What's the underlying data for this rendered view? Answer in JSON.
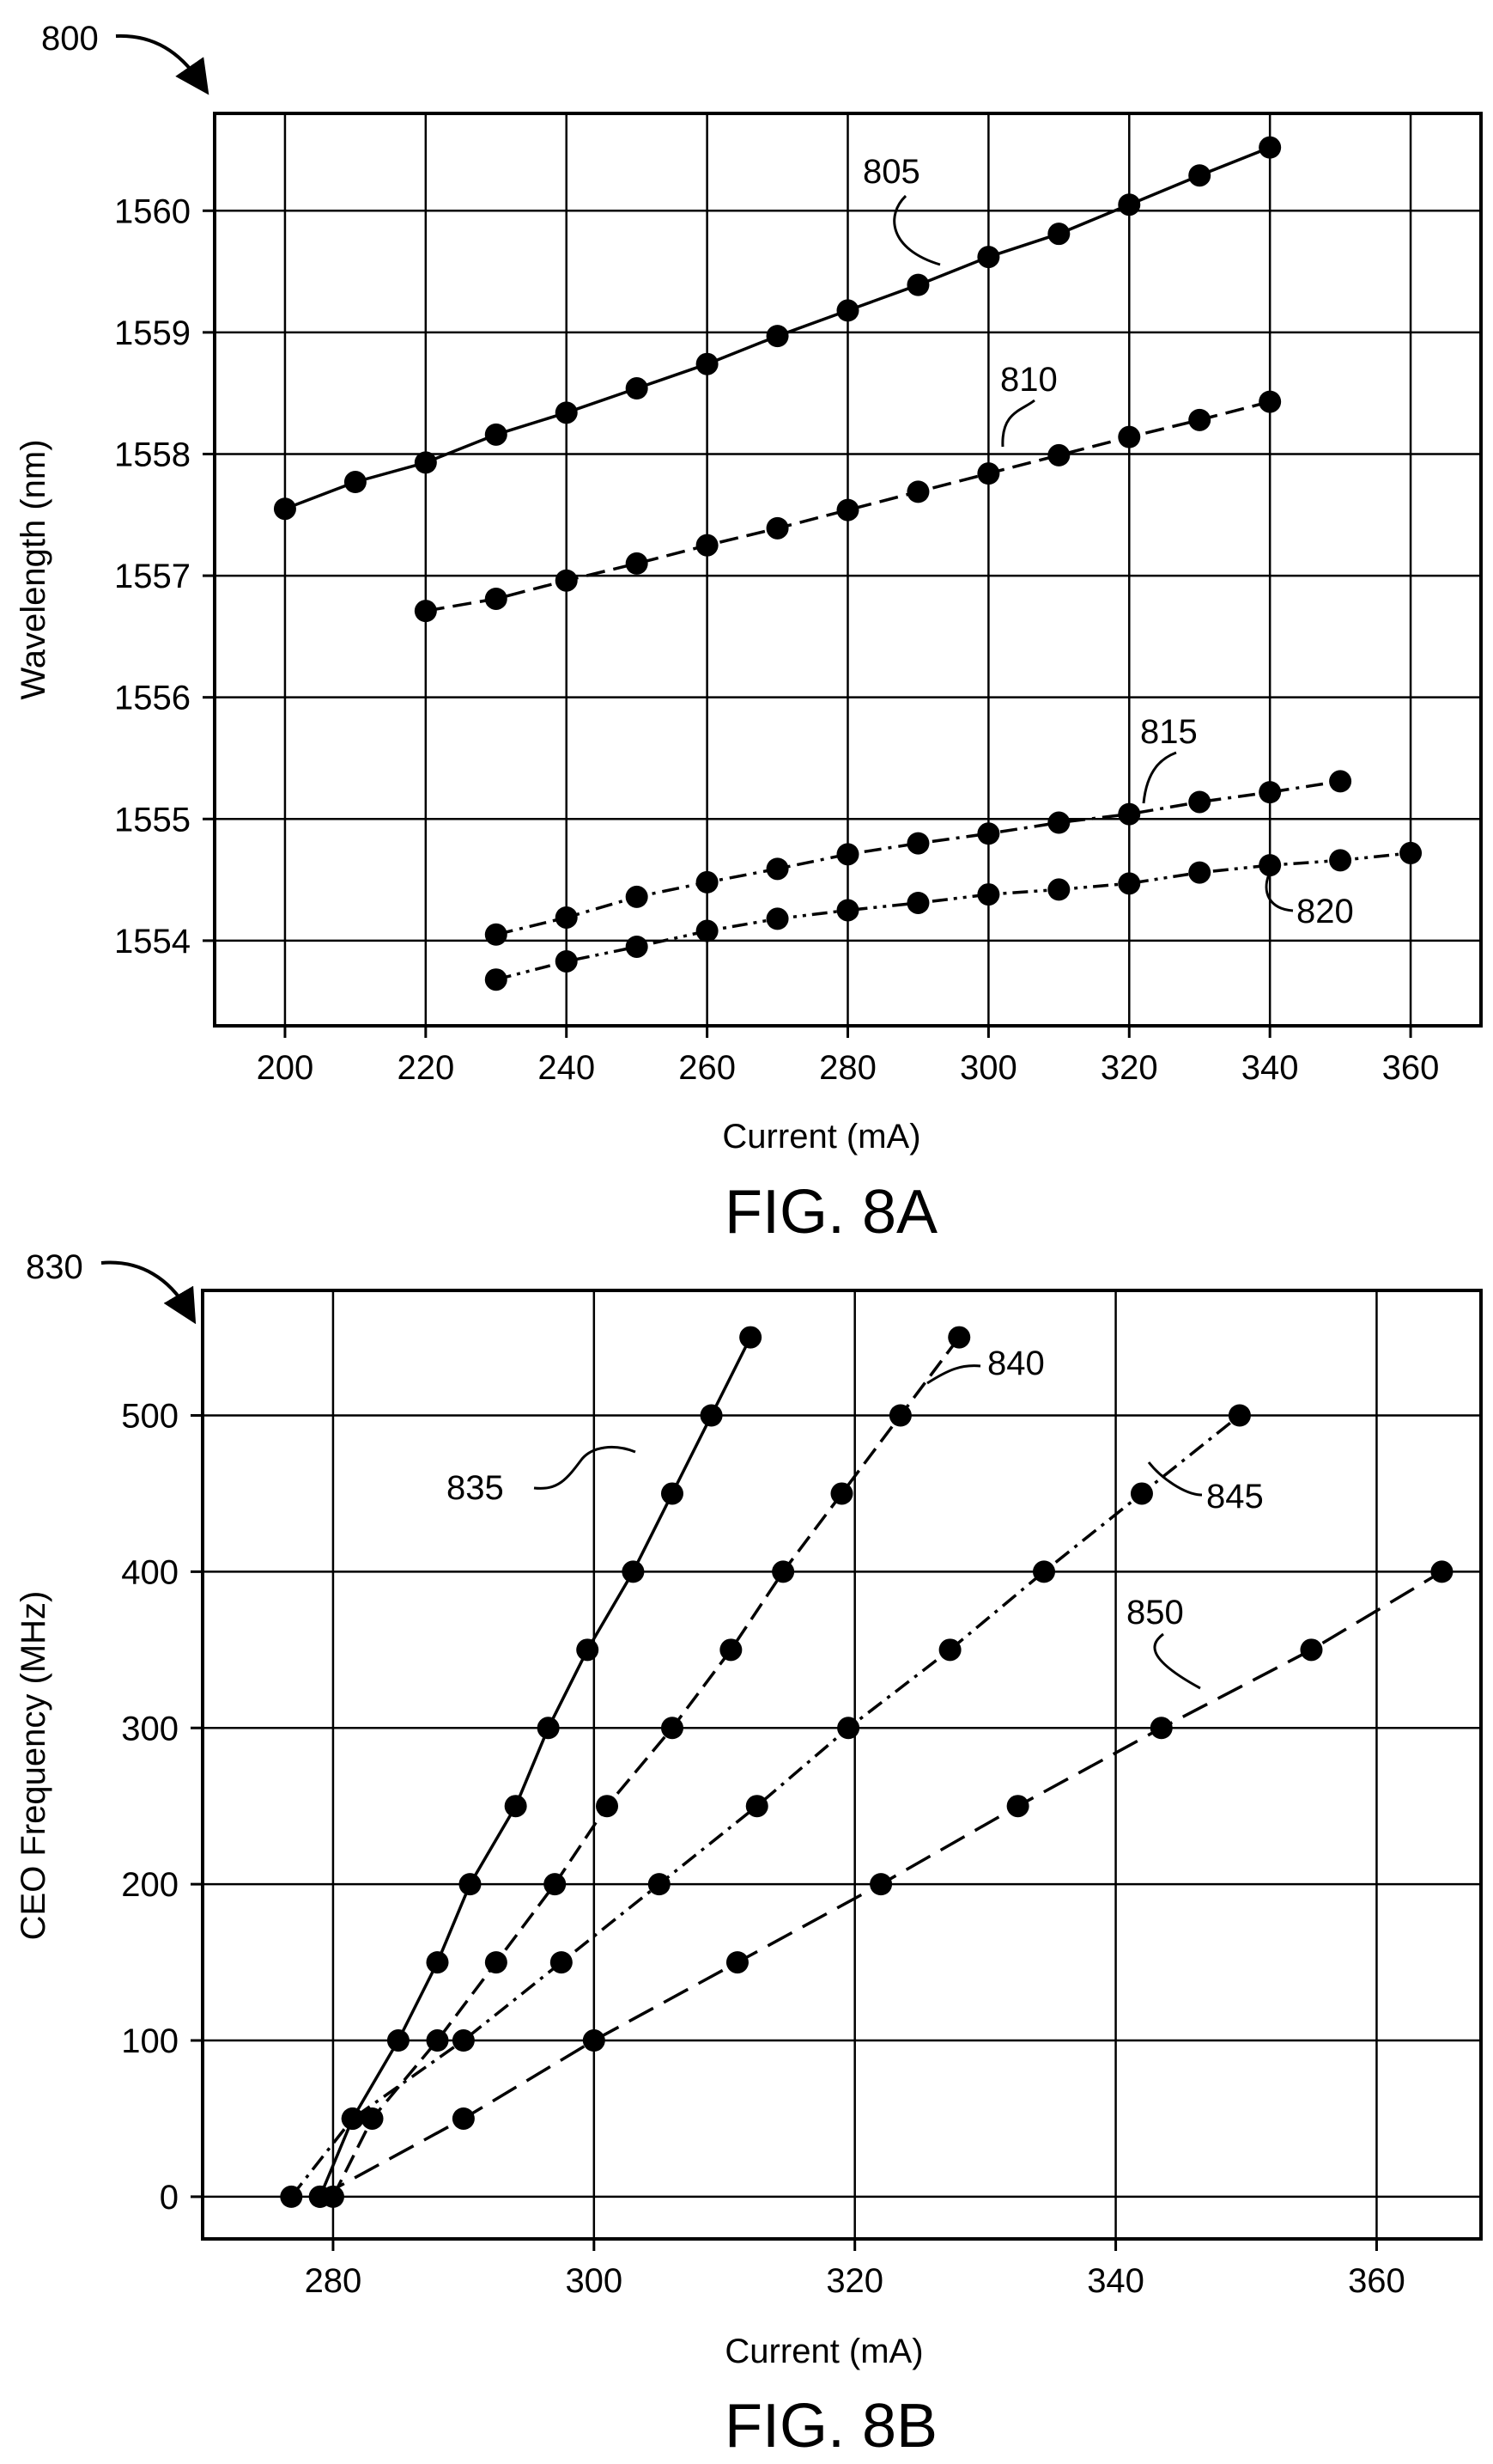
{
  "chart_data": [
    {
      "type": "line",
      "figure_ref": "800",
      "caption": "FIG. 8A",
      "xlabel": "Current (mA)",
      "ylabel": "Wavelength (nm)",
      "xlim": [
        190,
        370
      ],
      "ylim": [
        1553.3,
        1560.8
      ],
      "xticks": [
        200,
        220,
        240,
        260,
        280,
        300,
        320,
        340,
        360
      ],
      "yticks": [
        1554,
        1555,
        1556,
        1557,
        1558,
        1559,
        1560
      ],
      "grid": true,
      "series": [
        {
          "name": "805",
          "style": "solid",
          "x": [
            200,
            210,
            220,
            230,
            240,
            250,
            260,
            270,
            280,
            290,
            300,
            310,
            320,
            330,
            340
          ],
          "y": [
            1557.55,
            1557.77,
            1557.93,
            1558.16,
            1558.34,
            1558.54,
            1558.74,
            1558.97,
            1559.18,
            1559.39,
            1559.62,
            1559.81,
            1560.05,
            1560.29,
            1560.52
          ]
        },
        {
          "name": "810",
          "style": "dashed",
          "x": [
            220,
            230,
            240,
            250,
            260,
            270,
            280,
            290,
            300,
            310,
            320,
            330,
            340
          ],
          "y": [
            1556.71,
            1556.81,
            1556.96,
            1557.1,
            1557.25,
            1557.39,
            1557.54,
            1557.69,
            1557.84,
            1557.99,
            1558.14,
            1558.28,
            1558.43
          ]
        },
        {
          "name": "815",
          "style": "dash-dot",
          "x": [
            230,
            240,
            250,
            260,
            270,
            280,
            290,
            300,
            310,
            320,
            330,
            340,
            350
          ],
          "y": [
            1554.05,
            1554.19,
            1554.36,
            1554.48,
            1554.59,
            1554.71,
            1554.8,
            1554.88,
            1554.97,
            1555.04,
            1555.14,
            1555.22,
            1555.31
          ]
        },
        {
          "name": "820",
          "style": "dash-dot-dot",
          "x": [
            230,
            240,
            250,
            260,
            270,
            280,
            290,
            300,
            310,
            320,
            330,
            340,
            350,
            360
          ],
          "y": [
            1553.68,
            1553.83,
            1553.95,
            1554.08,
            1554.18,
            1554.25,
            1554.31,
            1554.38,
            1554.42,
            1554.47,
            1554.56,
            1554.62,
            1554.66,
            1554.72
          ]
        }
      ]
    },
    {
      "type": "line",
      "figure_ref": "830",
      "caption": "FIG. 8B",
      "xlabel": "Current (mA)",
      "ylabel": "CEO Frequency (MHz)",
      "xlim": [
        270,
        368
      ],
      "ylim": [
        -27,
        580
      ],
      "xticks": [
        280,
        300,
        320,
        340,
        360
      ],
      "yticks": [
        0,
        100,
        200,
        300,
        400,
        500
      ],
      "grid": true,
      "series": [
        {
          "name": "835",
          "style": "solid",
          "x": [
            279,
            281.5,
            285,
            288,
            290.5,
            294,
            296.5,
            299.5,
            303,
            306,
            309,
            312
          ],
          "y": [
            0,
            50,
            100,
            150,
            200,
            250,
            300,
            350,
            400,
            450,
            500,
            550
          ]
        },
        {
          "name": "840",
          "style": "dashed",
          "x": [
            280,
            283,
            288,
            292.5,
            297,
            301,
            306,
            310.5,
            314.5,
            319,
            323.5,
            328
          ],
          "y": [
            0,
            50,
            100,
            150,
            200,
            250,
            300,
            350,
            400,
            450,
            500,
            550
          ]
        },
        {
          "name": "845",
          "style": "dash-dot",
          "x": [
            276.8,
            281.5,
            290,
            297.5,
            305,
            312.5,
            319.5,
            327.3,
            334.5,
            342,
            349.5
          ],
          "y": [
            0,
            50,
            100,
            150,
            200,
            250,
            300,
            350,
            400,
            450,
            500
          ]
        },
        {
          "name": "850",
          "style": "long-dash",
          "x": [
            279,
            290,
            300,
            311,
            322,
            332.5,
            343.5,
            355,
            365
          ],
          "y": [
            0,
            50,
            100,
            150,
            200,
            250,
            300,
            350,
            400
          ]
        }
      ]
    }
  ]
}
